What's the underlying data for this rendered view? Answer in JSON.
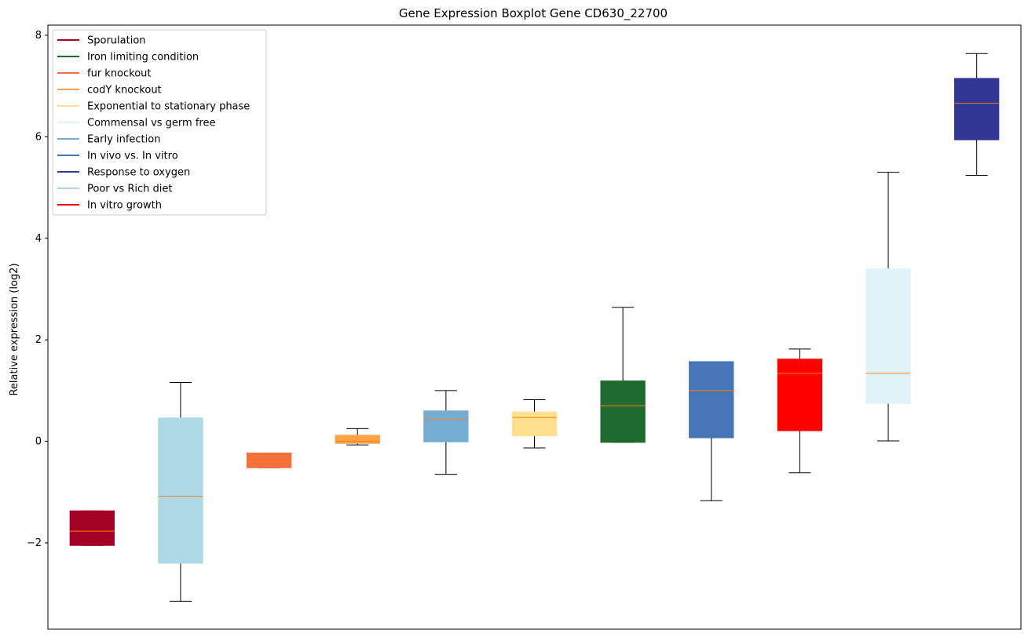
{
  "chart_data": {
    "type": "boxplot",
    "title": "Gene Expression Boxplot Gene CD630_22700",
    "xlabel": "",
    "ylabel": "Relative expression (log2)",
    "ylim": [
      -3.7,
      8.2
    ],
    "yticks": [
      -2,
      0,
      2,
      4,
      6,
      8
    ],
    "grid": false,
    "legend_position": "top-left",
    "legend": [
      {
        "label": "Sporulation",
        "color": "#a50026"
      },
      {
        "label": "Iron limiting condition",
        "color": "#1f6b2f"
      },
      {
        "label": "fur knockout",
        "color": "#f4703f"
      },
      {
        "label": "codY knockout",
        "color": "#fca349"
      },
      {
        "label": "Exponential to stationary phase",
        "color": "#fee08f"
      },
      {
        "label": "Commensal vs germ free",
        "color": "#e0f3f8"
      },
      {
        "label": "Early infection",
        "color": "#74add1"
      },
      {
        "label": "In vivo vs. In vitro",
        "color": "#4575b4"
      },
      {
        "label": "Response to oxygen",
        "color": "#313695"
      },
      {
        "label": "Poor vs Rich diet",
        "color": "#abd9e9"
      },
      {
        "label": "In vitro growth",
        "color": "#ff0000"
      }
    ],
    "median_color": "#ff7f0e",
    "boxes": [
      {
        "group": "Sporulation",
        "color": "#a50026",
        "whisker_low": -2.05,
        "q1": -2.05,
        "median": -1.77,
        "q3": -1.37,
        "whisker_high": -1.37
      },
      {
        "group": "Poor vs Rich diet",
        "color": "#add8e6",
        "whisker_low": -3.15,
        "q1": -2.4,
        "median": -1.08,
        "q3": 0.46,
        "whisker_high": 1.16
      },
      {
        "group": "fur knockout",
        "color": "#f4703f",
        "whisker_low": -0.52,
        "q1": -0.52,
        "median": -0.4,
        "q3": -0.23,
        "whisker_high": -0.23
      },
      {
        "group": "codY knockout",
        "color": "#fca349",
        "whisker_low": -0.07,
        "q1": -0.04,
        "median": 0.0,
        "q3": 0.12,
        "whisker_high": 0.25
      },
      {
        "group": "Early infection",
        "color": "#74add1",
        "whisker_low": -0.65,
        "q1": -0.01,
        "median": 0.43,
        "q3": 0.6,
        "whisker_high": 1.0
      },
      {
        "group": "Exponential to stationary phase",
        "color": "#fee08f",
        "whisker_low": -0.13,
        "q1": 0.11,
        "median": 0.47,
        "q3": 0.58,
        "whisker_high": 0.82
      },
      {
        "group": "Iron limiting condition",
        "color": "#1f6b2f",
        "whisker_low": -0.02,
        "q1": -0.02,
        "median": 0.7,
        "q3": 1.19,
        "whisker_high": 2.64
      },
      {
        "group": "In vivo vs. In vitro",
        "color": "#4575b4",
        "whisker_low": -1.17,
        "q1": 0.07,
        "median": 1.0,
        "q3": 1.57,
        "whisker_high": 1.57
      },
      {
        "group": "In vitro growth",
        "color": "#ff0000",
        "whisker_low": -0.62,
        "q1": 0.21,
        "median": 1.34,
        "q3": 1.62,
        "whisker_high": 1.82
      },
      {
        "group": "Commensal vs germ free",
        "color": "#e0f3f8",
        "whisker_low": 0.01,
        "q1": 0.75,
        "median": 1.34,
        "q3": 3.4,
        "whisker_high": 5.3
      },
      {
        "group": "Response to oxygen",
        "color": "#313695",
        "whisker_low": 5.24,
        "q1": 5.94,
        "median": 6.66,
        "q3": 7.15,
        "whisker_high": 7.64
      }
    ]
  }
}
